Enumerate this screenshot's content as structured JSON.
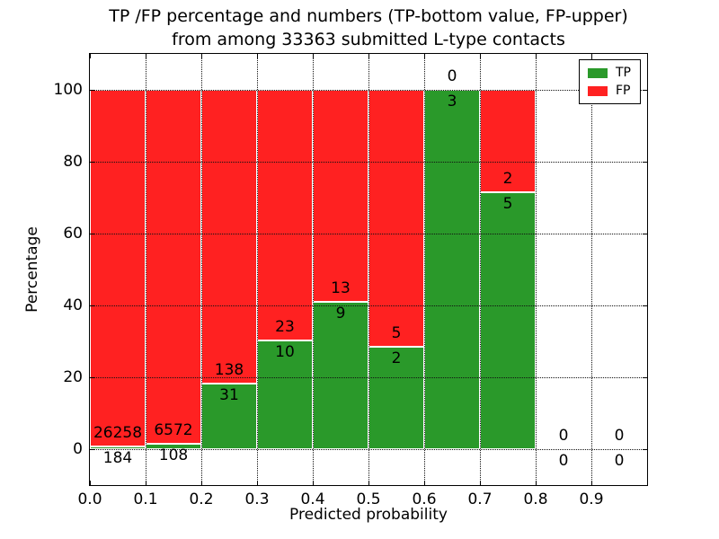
{
  "chart_data": {
    "type": "bar",
    "stacked": true,
    "title_line1": "TP /FP percentage and numbers (TP-bottom value, FP-upper)",
    "title_line2": "from among 33363 submitted L-type contacts",
    "xlabel": "Predicted probability",
    "ylabel": "Percentage",
    "total_contacts": 33363,
    "bin_width": 0.1,
    "bin_starts": [
      0.0,
      0.1,
      0.2,
      0.3,
      0.4,
      0.5,
      0.6,
      0.7,
      0.8,
      0.9
    ],
    "series": [
      {
        "name": "TP",
        "color": "#2a992a",
        "counts": [
          184,
          108,
          31,
          10,
          9,
          2,
          3,
          5,
          0,
          0
        ]
      },
      {
        "name": "FP",
        "color": "#ff2121",
        "counts": [
          26258,
          6572,
          138,
          23,
          13,
          5,
          0,
          2,
          0,
          0
        ]
      }
    ],
    "bar_label_note": "TP count below segment boundary, FP count above it",
    "xlim": [
      0.0,
      1.0
    ],
    "ylim": [
      -10,
      110
    ],
    "xticks": [
      "0.0",
      "0.1",
      "0.2",
      "0.3",
      "0.4",
      "0.5",
      "0.6",
      "0.7",
      "0.8",
      "0.9"
    ],
    "yticks": [
      0,
      20,
      40,
      60,
      80,
      100
    ],
    "grid": true,
    "grid_style": "dotted",
    "legend": {
      "position": "upper right",
      "entries": [
        {
          "label": "TP",
          "color": "#2a992a"
        },
        {
          "label": "FP",
          "color": "#ff2121"
        }
      ]
    }
  }
}
